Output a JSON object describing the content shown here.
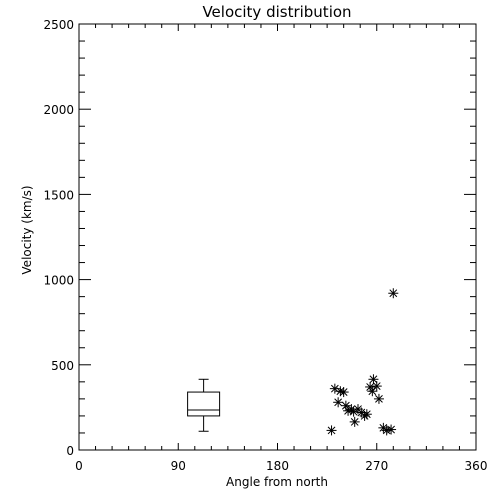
{
  "chart_data": {
    "type": "scatter",
    "title": "Velocity distribution",
    "xlabel": "Angle from north",
    "ylabel": "Velocity (km/s)",
    "xlim": [
      0,
      360
    ],
    "ylim": [
      0,
      2500
    ],
    "xticks": [
      0,
      90,
      180,
      270,
      360
    ],
    "yticks": [
      0,
      500,
      1000,
      1500,
      2000,
      2500
    ],
    "grid": false,
    "marker": "asterisk",
    "points": [
      {
        "x": 229,
        "y": 115
      },
      {
        "x": 232,
        "y": 360
      },
      {
        "x": 235,
        "y": 280
      },
      {
        "x": 237,
        "y": 345
      },
      {
        "x": 240,
        "y": 340
      },
      {
        "x": 242,
        "y": 260
      },
      {
        "x": 244,
        "y": 230
      },
      {
        "x": 247,
        "y": 240
      },
      {
        "x": 249,
        "y": 225
      },
      {
        "x": 250,
        "y": 165
      },
      {
        "x": 253,
        "y": 240
      },
      {
        "x": 256,
        "y": 220
      },
      {
        "x": 259,
        "y": 200
      },
      {
        "x": 261,
        "y": 210
      },
      {
        "x": 264,
        "y": 370
      },
      {
        "x": 266,
        "y": 345
      },
      {
        "x": 267,
        "y": 415
      },
      {
        "x": 270,
        "y": 375
      },
      {
        "x": 272,
        "y": 300
      },
      {
        "x": 276,
        "y": 130
      },
      {
        "x": 279,
        "y": 115
      },
      {
        "x": 283,
        "y": 120
      },
      {
        "x": 285,
        "y": 920
      }
    ],
    "boxplot": {
      "x": 113,
      "min": 110,
      "q1": 200,
      "median": 235,
      "q3": 340,
      "max": 415
    }
  }
}
